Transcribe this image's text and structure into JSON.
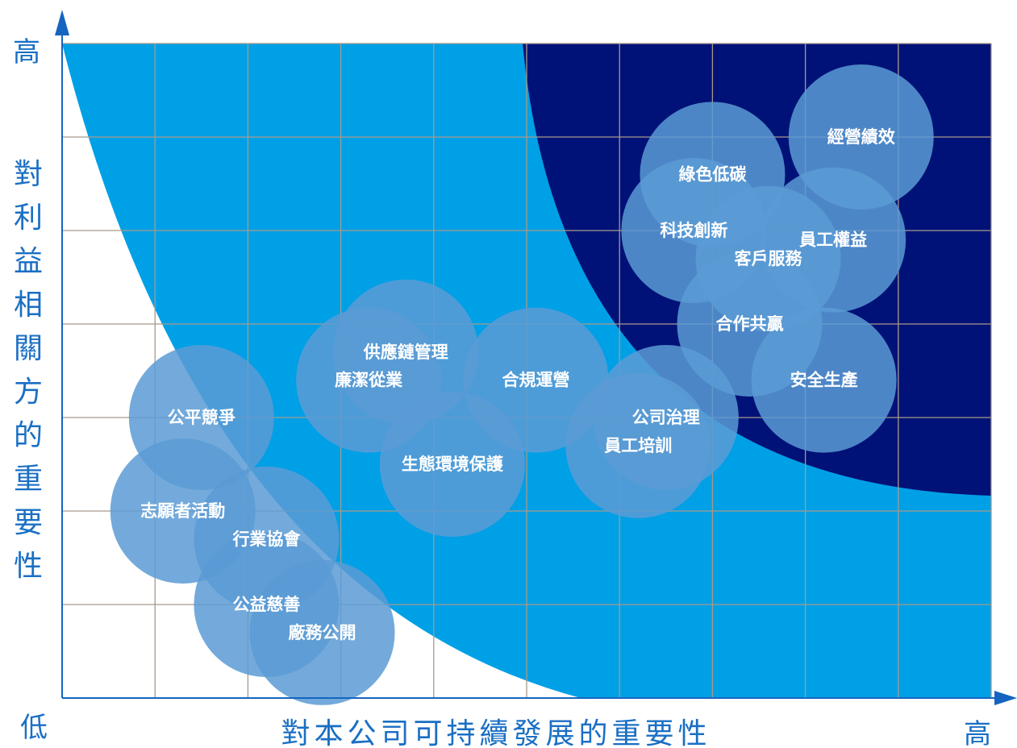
{
  "chart_data": {
    "type": "scatter",
    "subtype": "bubble-matrix",
    "xlabel": "對本公司可持續發展的重要性",
    "ylabel": "對利益相關方的重要性",
    "x_low_label": "低",
    "x_high_label": "高",
    "y_high_label": "高",
    "xlim": [
      0,
      10
    ],
    "ylim": [
      0,
      7
    ],
    "grid": true,
    "zones": [
      {
        "name": "low",
        "color": "#ffffff"
      },
      {
        "name": "medium",
        "color": "#00a0e6"
      },
      {
        "name": "high",
        "color": "#001277"
      }
    ],
    "bubble_color": "#5b9bd5",
    "points": [
      {
        "label": "經營績效",
        "x": 8.6,
        "y": 6.0
      },
      {
        "label": "綠色低碳",
        "x": 7.0,
        "y": 5.6
      },
      {
        "label": "科技創新",
        "x": 6.8,
        "y": 5.0
      },
      {
        "label": "員工權益",
        "x": 8.3,
        "y": 4.9
      },
      {
        "label": "客戶服務",
        "x": 7.6,
        "y": 4.7
      },
      {
        "label": "合作共贏",
        "x": 7.4,
        "y": 4.0
      },
      {
        "label": "安全生產",
        "x": 8.2,
        "y": 3.4
      },
      {
        "label": "公司治理",
        "x": 6.5,
        "y": 3.0
      },
      {
        "label": "員工培訓",
        "x": 6.2,
        "y": 2.7
      },
      {
        "label": "合規運營",
        "x": 5.1,
        "y": 3.4
      },
      {
        "label": "供應鏈管理",
        "x": 3.7,
        "y": 3.7
      },
      {
        "label": "廉潔從業",
        "x": 3.3,
        "y": 3.4
      },
      {
        "label": "生態環境保護",
        "x": 4.2,
        "y": 2.5
      },
      {
        "label": "公平競爭",
        "x": 1.5,
        "y": 3.0
      },
      {
        "label": "志願者活動",
        "x": 1.3,
        "y": 2.0
      },
      {
        "label": "行業協會",
        "x": 2.2,
        "y": 1.7
      },
      {
        "label": "公益慈善",
        "x": 2.2,
        "y": 1.0
      },
      {
        "label": "廠務公開",
        "x": 2.8,
        "y": 0.7
      }
    ]
  }
}
